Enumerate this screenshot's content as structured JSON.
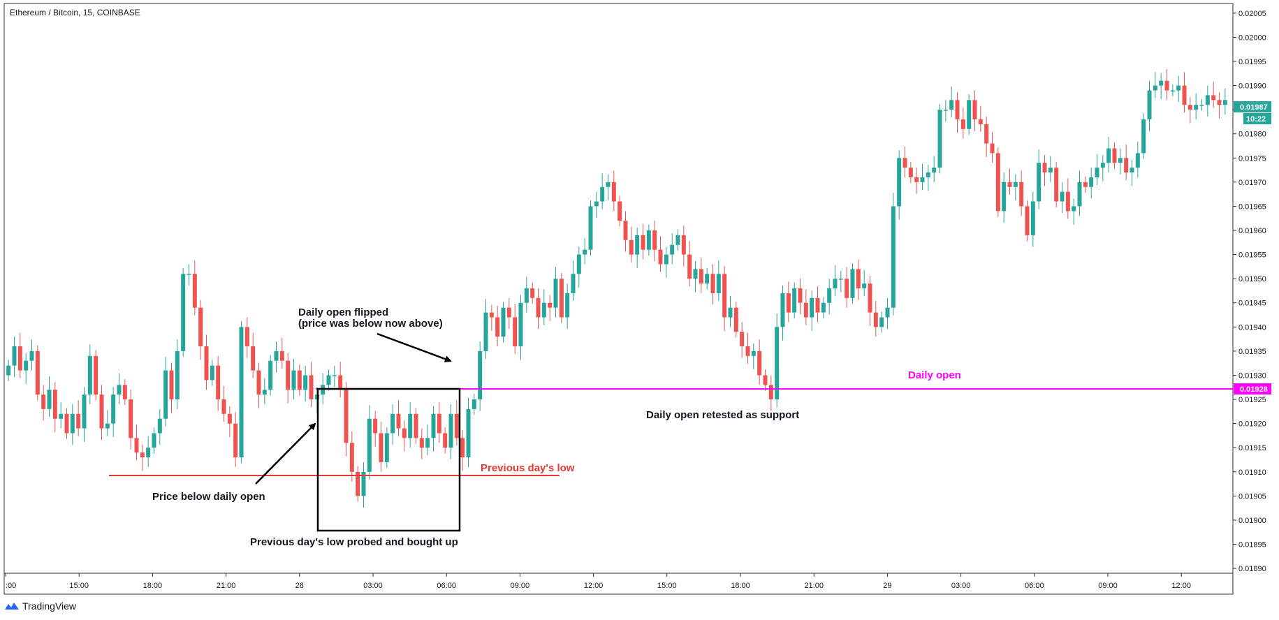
{
  "title": "Ethereum / Bitcoin, 15, COINBASE",
  "brand": "TradingView",
  "colors": {
    "up": "#26a69a",
    "down": "#ef5350",
    "daily_open_line": "#ff00ff",
    "prev_low_line": "#e53935",
    "annotation": "#000000"
  },
  "price_badges": {
    "last_price": "0.01987",
    "countdown": "10:22",
    "daily_open_price": "0.01928"
  },
  "annotations": {
    "daily_open_flipped_line1": "Daily open flipped",
    "daily_open_flipped_line2": "(price was below now above)",
    "price_below": "Price below daily open",
    "probed": "Previous day's low probed and bought up",
    "retested": "Daily open retested as support",
    "daily_open_label": "Daily open",
    "prev_low_label": "Previous day's low"
  },
  "chart_data": {
    "type": "candlestick",
    "title": "Ethereum / Bitcoin, 15, COINBASE",
    "x_tick_labels": [
      ":00",
      "15:00",
      "18:00",
      "21:00",
      "28",
      "03:00",
      "06:00",
      "09:00",
      "12:00",
      "15:00",
      "18:00",
      "21:00",
      "29",
      "03:00",
      "06:00",
      "09:00",
      "12:00"
    ],
    "y_tick_labels": [
      "0.02005",
      "0.02000",
      "0.01995",
      "0.01990",
      "0.01985",
      "0.01980",
      "0.01975",
      "0.01970",
      "0.01965",
      "0.01960",
      "0.01955",
      "0.01950",
      "0.01945",
      "0.01940",
      "0.01935",
      "0.01930",
      "0.01925",
      "0.01920",
      "0.01915",
      "0.01910",
      "0.01905",
      "0.01900",
      "0.01895",
      "0.01890"
    ],
    "ylim": [
      0.01889,
      0.02007
    ],
    "grid": false,
    "daily_open": 0.01928,
    "previous_day_low": 0.0191,
    "last_price": 0.01987,
    "closes": [
      0.01932,
      0.01936,
      0.01931,
      0.01933,
      0.01935,
      0.01926,
      0.01923,
      0.01927,
      0.01921,
      0.01922,
      0.01918,
      0.01922,
      0.01919,
      0.01926,
      0.01934,
      0.01926,
      0.01919,
      0.0192,
      0.01926,
      0.01928,
      0.01925,
      0.01917,
      0.01914,
      0.01913,
      0.01915,
      0.01918,
      0.01921,
      0.01931,
      0.01925,
      0.01935,
      0.01951,
      0.01951,
      0.01944,
      0.01936,
      0.01929,
      0.01932,
      0.01925,
      0.01922,
      0.0192,
      0.01913,
      0.0194,
      0.01936,
      0.01931,
      0.01926,
      0.01927,
      0.01933,
      0.01935,
      0.01933,
      0.01927,
      0.01931,
      0.01927,
      0.0193,
      0.01925,
      0.01926,
      0.01928,
      0.0193,
      0.0193,
      0.01927,
      0.01916,
      0.0191,
      0.01905,
      0.0191,
      0.01921,
      0.01918,
      0.01912,
      0.01918,
      0.01922,
      0.01919,
      0.01917,
      0.01922,
      0.01917,
      0.01915,
      0.01917,
      0.01922,
      0.01918,
      0.01915,
      0.01922,
      0.01917,
      0.01913,
      0.01923,
      0.01925,
      0.01935,
      0.01943,
      0.01942,
      0.01938,
      0.01944,
      0.01942,
      0.01936,
      0.01945,
      0.01948,
      0.01946,
      0.01942,
      0.01945,
      0.01944,
      0.0195,
      0.01942,
      0.01947,
      0.01951,
      0.01955,
      0.01956,
      0.01965,
      0.01966,
      0.01969,
      0.0197,
      0.01966,
      0.01962,
      0.01958,
      0.01955,
      0.01959,
      0.01956,
      0.0196,
      0.01956,
      0.01953,
      0.01955,
      0.01957,
      0.01959,
      0.01955,
      0.0195,
      0.01952,
      0.01949,
      0.01951,
      0.01947,
      0.01951,
      0.01942,
      0.01944,
      0.01939,
      0.01936,
      0.01934,
      0.01935,
      0.0193,
      0.01928,
      0.01925,
      0.0194,
      0.01947,
      0.01943,
      0.01948,
      0.01945,
      0.01942,
      0.01946,
      0.01943,
      0.01945,
      0.01948,
      0.0195,
      0.0195,
      0.01946,
      0.01952,
      0.01948,
      0.01949,
      0.01943,
      0.0194,
      0.01942,
      0.01944,
      0.01965,
      0.01975,
      0.01973,
      0.01971,
      0.0197,
      0.01971,
      0.01972,
      0.01973,
      0.01985,
      0.01985,
      0.01987,
      0.01983,
      0.01981,
      0.01987,
      0.01983,
      0.01982,
      0.01978,
      0.01976,
      0.01964,
      0.0197,
      0.01969,
      0.0197,
      0.01965,
      0.01959,
      0.01966,
      0.01974,
      0.01972,
      0.01973,
      0.01966,
      0.01968,
      0.01964,
      0.01965,
      0.0197,
      0.01969,
      0.01971,
      0.01973,
      0.01974,
      0.01977,
      0.01974,
      0.01975,
      0.01972,
      0.01973,
      0.01976,
      0.01983,
      0.01989,
      0.0199,
      0.01991,
      0.01989,
      0.01989,
      0.0199,
      0.01986,
      0.01985,
      0.01986,
      0.01986,
      0.01988,
      0.01987,
      0.01986,
      0.01987
    ]
  }
}
